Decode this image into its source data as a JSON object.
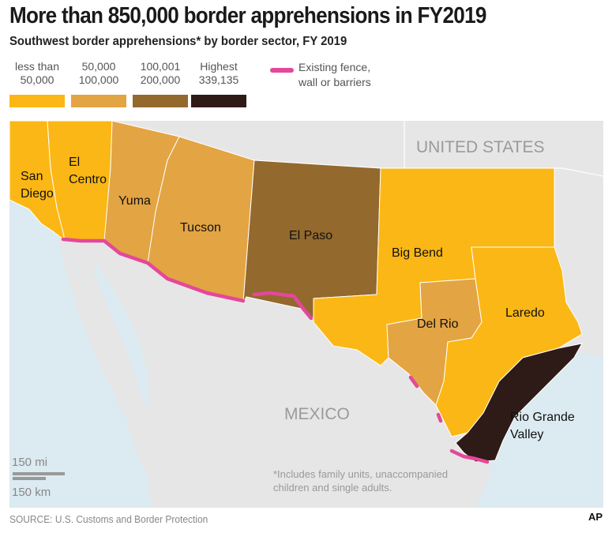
{
  "header": {
    "title": "More than 850,000 border apprehensions in FY2019",
    "subtitle": "Southwest border apprehensions* by border sector, FY 2019"
  },
  "legend": {
    "items": [
      {
        "label": "less than\n50,000",
        "color": "#fbb715"
      },
      {
        "label": "50,000\n100,000",
        "color": "#e3a443"
      },
      {
        "label": "100,001\n200,000",
        "color": "#93692e"
      },
      {
        "label": "Highest\n339,135",
        "color": "#2e1a17"
      }
    ],
    "fence": {
      "label": "Existing fence,\nwall or barriers",
      "color": "#e3489b"
    }
  },
  "map": {
    "country_labels": {
      "us": "UNITED STATES",
      "mexico": "MEXICO"
    },
    "sectors": [
      {
        "name": "San\nDiego",
        "category": "less than 50,000"
      },
      {
        "name": "El\nCentro",
        "category": "less than 50,000"
      },
      {
        "name": "Yuma",
        "category": "50,000 - 100,000"
      },
      {
        "name": "Tucson",
        "category": "50,000 - 100,000"
      },
      {
        "name": "El Paso",
        "category": "100,001 - 200,000"
      },
      {
        "name": "Big Bend",
        "category": "less than 50,000"
      },
      {
        "name": "Del Rio",
        "category": "50,000 - 100,000"
      },
      {
        "name": "Laredo",
        "category": "less than 50,000"
      },
      {
        "name": "Rio Grande\nValley",
        "category": "Highest 339,135"
      }
    ],
    "scale": {
      "mi": "150 mi",
      "km": "150 km"
    },
    "footnote": "*Includes family units, unaccompanied\nchildren and single adults.",
    "colors": {
      "land": "#e6e6e6",
      "water": "#dceaf1",
      "fence": "#e3489b",
      "border": "#ffffff"
    }
  },
  "source": "SOURCE: U.S. Customs and Border Protection",
  "credit": "AP"
}
